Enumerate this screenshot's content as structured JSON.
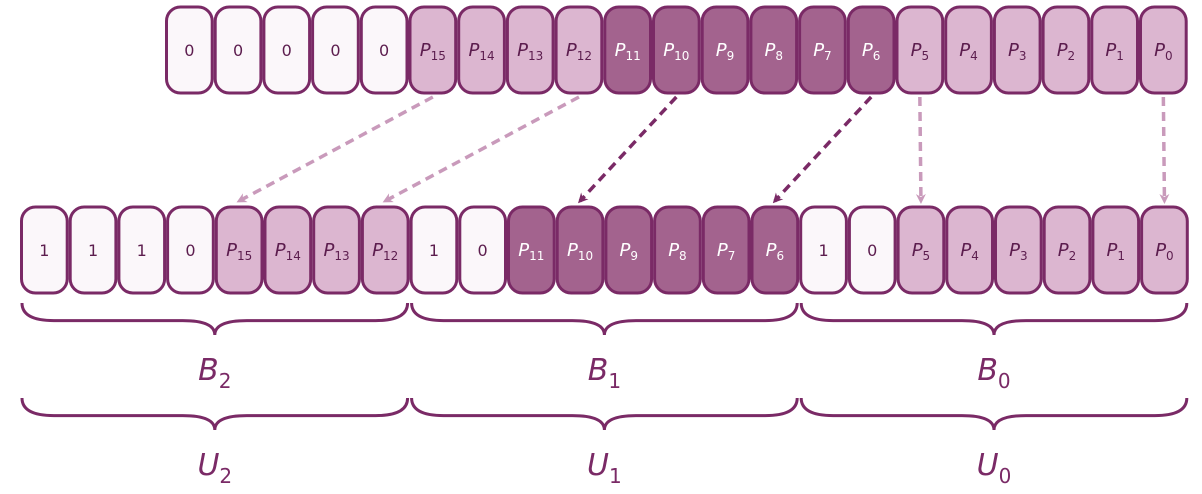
{
  "colors": {
    "outline": "#7a2a66",
    "zero_fill": "#fbf7fa",
    "light_fill": "#dcb6d0",
    "dark_fill": "#a3638e",
    "dark_text": "#ffffff",
    "light_text": "#5c1d4e",
    "light_arrow": "#c99abb",
    "dark_arrow": "#7a2a66"
  },
  "top_row": [
    {
      "base": "0",
      "sub": "",
      "shade": "zero"
    },
    {
      "base": "0",
      "sub": "",
      "shade": "zero"
    },
    {
      "base": "0",
      "sub": "",
      "shade": "zero"
    },
    {
      "base": "0",
      "sub": "",
      "shade": "zero"
    },
    {
      "base": "0",
      "sub": "",
      "shade": "zero"
    },
    {
      "base": "P",
      "sub": "15",
      "shade": "light"
    },
    {
      "base": "P",
      "sub": "14",
      "shade": "light"
    },
    {
      "base": "P",
      "sub": "13",
      "shade": "light"
    },
    {
      "base": "P",
      "sub": "12",
      "shade": "light"
    },
    {
      "base": "P",
      "sub": "11",
      "shade": "dark"
    },
    {
      "base": "P",
      "sub": "10",
      "shade": "dark"
    },
    {
      "base": "P",
      "sub": "9",
      "shade": "dark"
    },
    {
      "base": "P",
      "sub": "8",
      "shade": "dark"
    },
    {
      "base": "P",
      "sub": "7",
      "shade": "dark"
    },
    {
      "base": "P",
      "sub": "6",
      "shade": "dark"
    },
    {
      "base": "P",
      "sub": "5",
      "shade": "light"
    },
    {
      "base": "P",
      "sub": "4",
      "shade": "light"
    },
    {
      "base": "P",
      "sub": "3",
      "shade": "light"
    },
    {
      "base": "P",
      "sub": "2",
      "shade": "light"
    },
    {
      "base": "P",
      "sub": "1",
      "shade": "light"
    },
    {
      "base": "P",
      "sub": "0",
      "shade": "light"
    }
  ],
  "bottom_row": [
    {
      "base": "1",
      "sub": "",
      "shade": "zero"
    },
    {
      "base": "1",
      "sub": "",
      "shade": "zero"
    },
    {
      "base": "1",
      "sub": "",
      "shade": "zero"
    },
    {
      "base": "0",
      "sub": "",
      "shade": "zero"
    },
    {
      "base": "P",
      "sub": "15",
      "shade": "light"
    },
    {
      "base": "P",
      "sub": "14",
      "shade": "light"
    },
    {
      "base": "P",
      "sub": "13",
      "shade": "light"
    },
    {
      "base": "P",
      "sub": "12",
      "shade": "light"
    },
    {
      "base": "1",
      "sub": "",
      "shade": "zero"
    },
    {
      "base": "0",
      "sub": "",
      "shade": "zero"
    },
    {
      "base": "P",
      "sub": "11",
      "shade": "dark"
    },
    {
      "base": "P",
      "sub": "10",
      "shade": "dark"
    },
    {
      "base": "P",
      "sub": "9",
      "shade": "dark"
    },
    {
      "base": "P",
      "sub": "8",
      "shade": "dark"
    },
    {
      "base": "P",
      "sub": "7",
      "shade": "dark"
    },
    {
      "base": "P",
      "sub": "6",
      "shade": "dark"
    },
    {
      "base": "1",
      "sub": "",
      "shade": "zero"
    },
    {
      "base": "0",
      "sub": "",
      "shade": "zero"
    },
    {
      "base": "P",
      "sub": "5",
      "shade": "light"
    },
    {
      "base": "P",
      "sub": "4",
      "shade": "light"
    },
    {
      "base": "P",
      "sub": "3",
      "shade": "light"
    },
    {
      "base": "P",
      "sub": "2",
      "shade": "light"
    },
    {
      "base": "P",
      "sub": "1",
      "shade": "light"
    },
    {
      "base": "P",
      "sub": "0",
      "shade": "light"
    }
  ],
  "arrows": [
    {
      "from": 5,
      "to": 4,
      "shade": "light"
    },
    {
      "from": 8,
      "to": 7,
      "shade": "light"
    },
    {
      "from": 10,
      "to": 11,
      "shade": "dark"
    },
    {
      "from": 14,
      "to": 15,
      "shade": "dark"
    },
    {
      "from": 15,
      "to": 18,
      "shade": "light"
    },
    {
      "from": 20,
      "to": 23,
      "shade": "light"
    }
  ],
  "brace_groups": [
    {
      "start": 0,
      "end": 7,
      "b_base": "B",
      "b_sub": "2",
      "u_base": "U",
      "u_sub": "2"
    },
    {
      "start": 8,
      "end": 15,
      "b_base": "B",
      "b_sub": "1",
      "u_base": "U",
      "u_sub": "1"
    },
    {
      "start": 16,
      "end": 23,
      "b_base": "B",
      "b_sub": "0",
      "u_base": "U",
      "u_sub": "0"
    }
  ]
}
